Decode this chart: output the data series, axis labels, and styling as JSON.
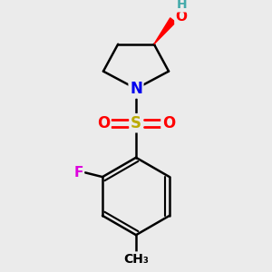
{
  "bg_color": "#ebebeb",
  "atom_colors": {
    "C": "#000000",
    "N": "#0000ee",
    "O": "#ff0000",
    "S": "#bbaa00",
    "F": "#dd00dd",
    "H": "#44aaaa"
  },
  "bond_color": "#000000",
  "figsize": [
    3.0,
    3.0
  ],
  "dpi": 100,
  "scale": 1.0
}
